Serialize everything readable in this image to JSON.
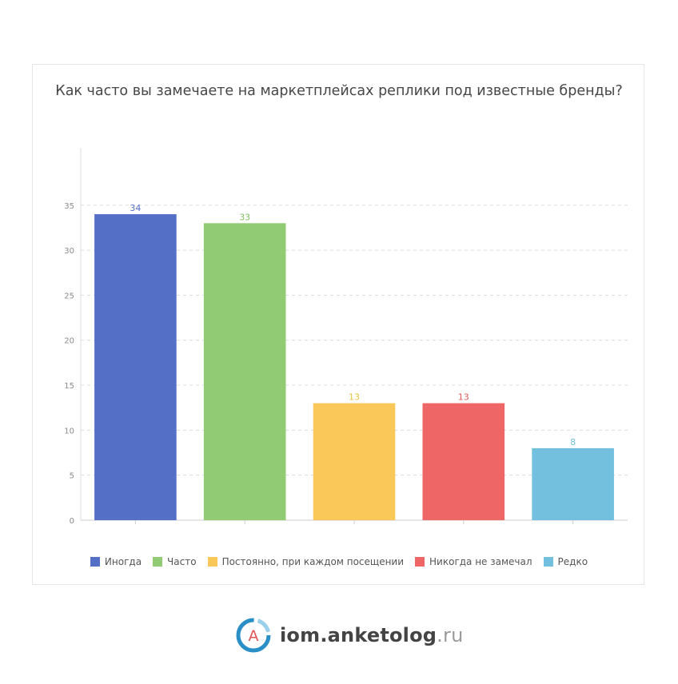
{
  "chart_data": {
    "type": "bar",
    "title": "Как часто вы замечаете на маркетплейсах реплики под известные бренды?",
    "categories": [
      "Иногда",
      "Часто",
      "Постоянно, при каждом посещении",
      "Никогда не замечал",
      "Редко"
    ],
    "values": [
      34,
      33,
      13,
      13,
      8
    ],
    "colors": [
      "#5470c6",
      "#91cc75",
      "#fac858",
      "#ee6666",
      "#73c0de"
    ],
    "label_colors": [
      "#5470c6",
      "#7fbf62",
      "#e6c43c",
      "#e05a5a",
      "#73c0de"
    ],
    "yticks": [
      0,
      5,
      10,
      15,
      20,
      25,
      30,
      35
    ],
    "ylim": [
      0,
      38
    ],
    "grid": true,
    "legend_position": "bottom"
  },
  "footer": {
    "logo_letter": "А",
    "brand_main": "iom.anketolog",
    "brand_suffix": ".ru"
  }
}
